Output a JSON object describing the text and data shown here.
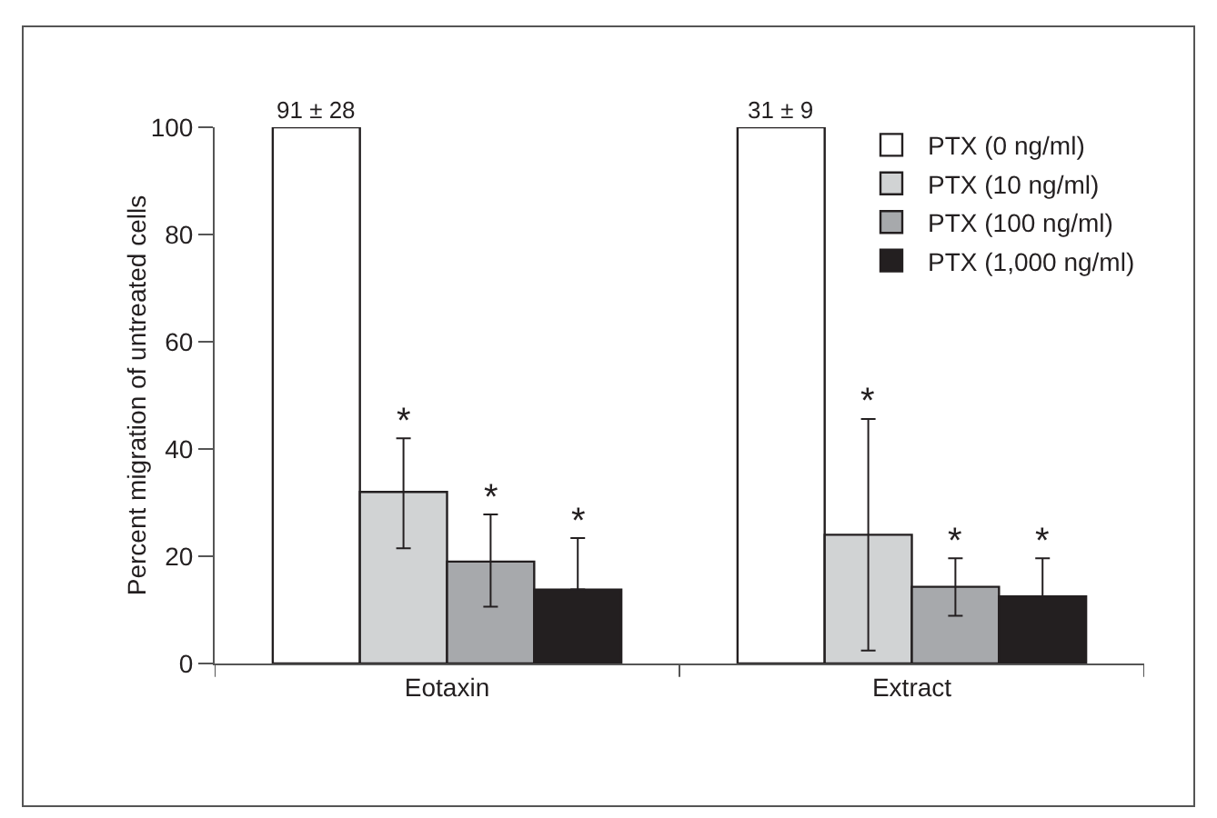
{
  "chart_data": {
    "type": "bar",
    "ylabel": "Percent migration of untreated cells",
    "categories": [
      "Eotaxin",
      "Extract"
    ],
    "ylim": [
      0,
      100
    ],
    "yticks": [
      0,
      20,
      40,
      60,
      80,
      100
    ],
    "grid": false,
    "legend": "top right",
    "annotations": [
      "91 ± 28",
      "31 ± 9"
    ],
    "series": [
      {
        "name": "PTX (0 ng/ml)",
        "color": "#ffffff",
        "values": [
          100,
          100
        ]
      },
      {
        "name": "PTX (10 ng/ml)",
        "color": "#d1d3d4",
        "values": [
          32,
          24
        ],
        "errors": [
          [
            21.5,
            42
          ],
          [
            2.4,
            45.6
          ]
        ],
        "value_labels": [
          "*",
          "*"
        ]
      },
      {
        "name": "PTX (100 ng/ml)",
        "color": "#a7a9ac",
        "values": [
          19,
          14.3
        ],
        "errors": [
          [
            10.6,
            27.8
          ],
          [
            8.9,
            19.6
          ]
        ],
        "value_labels": [
          "*",
          "*"
        ]
      },
      {
        "name": "PTX (1,000 ng/ml)",
        "color": "#231f20",
        "values": [
          13.8,
          12.5
        ],
        "errors": [
          [
            13.8,
            23.4
          ],
          [
            12.5,
            19.6
          ]
        ],
        "value_labels": [
          "*",
          "*"
        ]
      }
    ]
  }
}
